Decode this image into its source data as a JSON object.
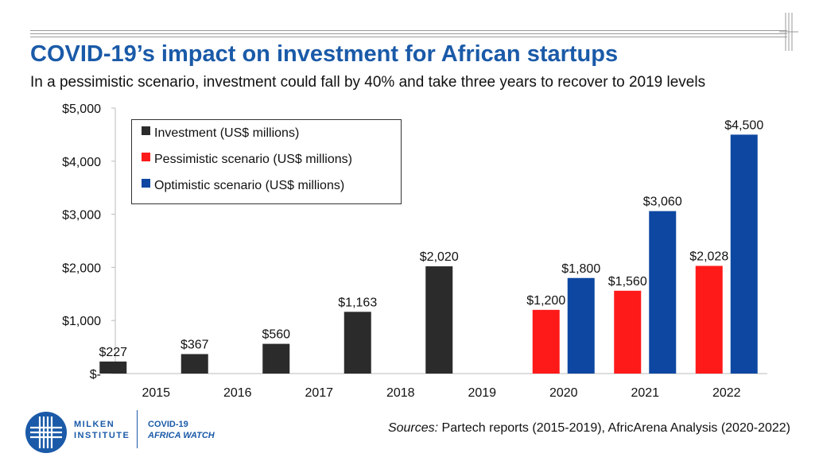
{
  "header": {
    "title": "COVID-19’s impact on investment for African startups",
    "subtitle": "In a pessimistic scenario, investment could fall by 40% and take three years to recover to 2019 levels"
  },
  "chart_data": {
    "type": "bar",
    "categories": [
      "2015",
      "2016",
      "2017",
      "2018",
      "2019",
      "2020",
      "2021",
      "2022"
    ],
    "series": [
      {
        "name": "Investment (US$ millions)",
        "color": "#2b2b2b",
        "values": [
          227,
          367,
          560,
          1163,
          2020,
          null,
          null,
          null
        ],
        "labels": [
          "$227",
          "$367",
          "$560",
          "$1,163",
          "$2,020",
          null,
          null,
          null
        ]
      },
      {
        "name": "Pessimistic scenario (US$ millions)",
        "color": "#ff1a1a",
        "values": [
          null,
          null,
          null,
          null,
          null,
          1200,
          1560,
          2028
        ],
        "labels": [
          null,
          null,
          null,
          null,
          null,
          "$1,200",
          "$1,560",
          "$2,028"
        ]
      },
      {
        "name": "Optimistic scenario (US$ millions)",
        "color": "#0d47a1",
        "values": [
          null,
          null,
          null,
          null,
          null,
          1800,
          3060,
          4500
        ],
        "labels": [
          null,
          null,
          null,
          null,
          null,
          "$1,800",
          "$3,060",
          "$4,500"
        ]
      }
    ],
    "y_ticks": [
      {
        "value": 0,
        "label": "$-"
      },
      {
        "value": 1000,
        "label": "$1,000"
      },
      {
        "value": 2000,
        "label": "$2,000"
      },
      {
        "value": 3000,
        "label": "$3,000"
      },
      {
        "value": 4000,
        "label": "$4,000"
      },
      {
        "value": 5000,
        "label": "$5,000"
      }
    ],
    "ylim": [
      0,
      5000
    ],
    "grid": false,
    "legend_position": "top-left"
  },
  "footer": {
    "org_line1": "MILKEN",
    "org_line2": "INSTITUTE",
    "program_line1": "COVID-19",
    "program_line2": "AFRICA WATCH",
    "sources_lead": "Sources:",
    "sources_text": " Partech reports (2015-2019), AfricArena Analysis (2020-2022)"
  },
  "colors": {
    "brand_blue": "#1a5aa8"
  }
}
